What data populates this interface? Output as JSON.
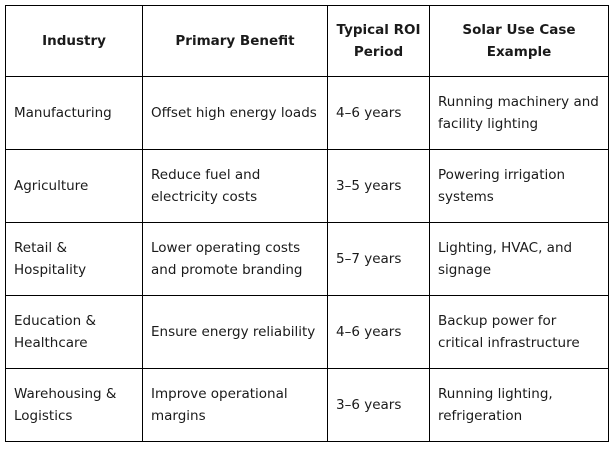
{
  "table": {
    "headers": [
      "Industry",
      "Primary Benefit",
      "Typical ROI Period",
      "Solar Use Case Example"
    ],
    "rows": [
      [
        "Manufacturing",
        "Offset high energy loads",
        "4–6 years",
        "Running machinery and facility lighting"
      ],
      [
        "Agriculture",
        "Reduce fuel and electricity costs",
        "3–5 years",
        "Powering irrigation systems"
      ],
      [
        "Retail & Hospitality",
        "Lower operating costs and promote branding",
        "5–7 years",
        "Lighting, HVAC, and signage"
      ],
      [
        "Education & Healthcare",
        "Ensure energy reliability",
        "4–6 years",
        "Backup power for critical infrastructure"
      ],
      [
        "Warehousing & Logistics",
        "Improve operational margins",
        "3–6 years",
        "Running lighting, refrigeration"
      ]
    ]
  }
}
